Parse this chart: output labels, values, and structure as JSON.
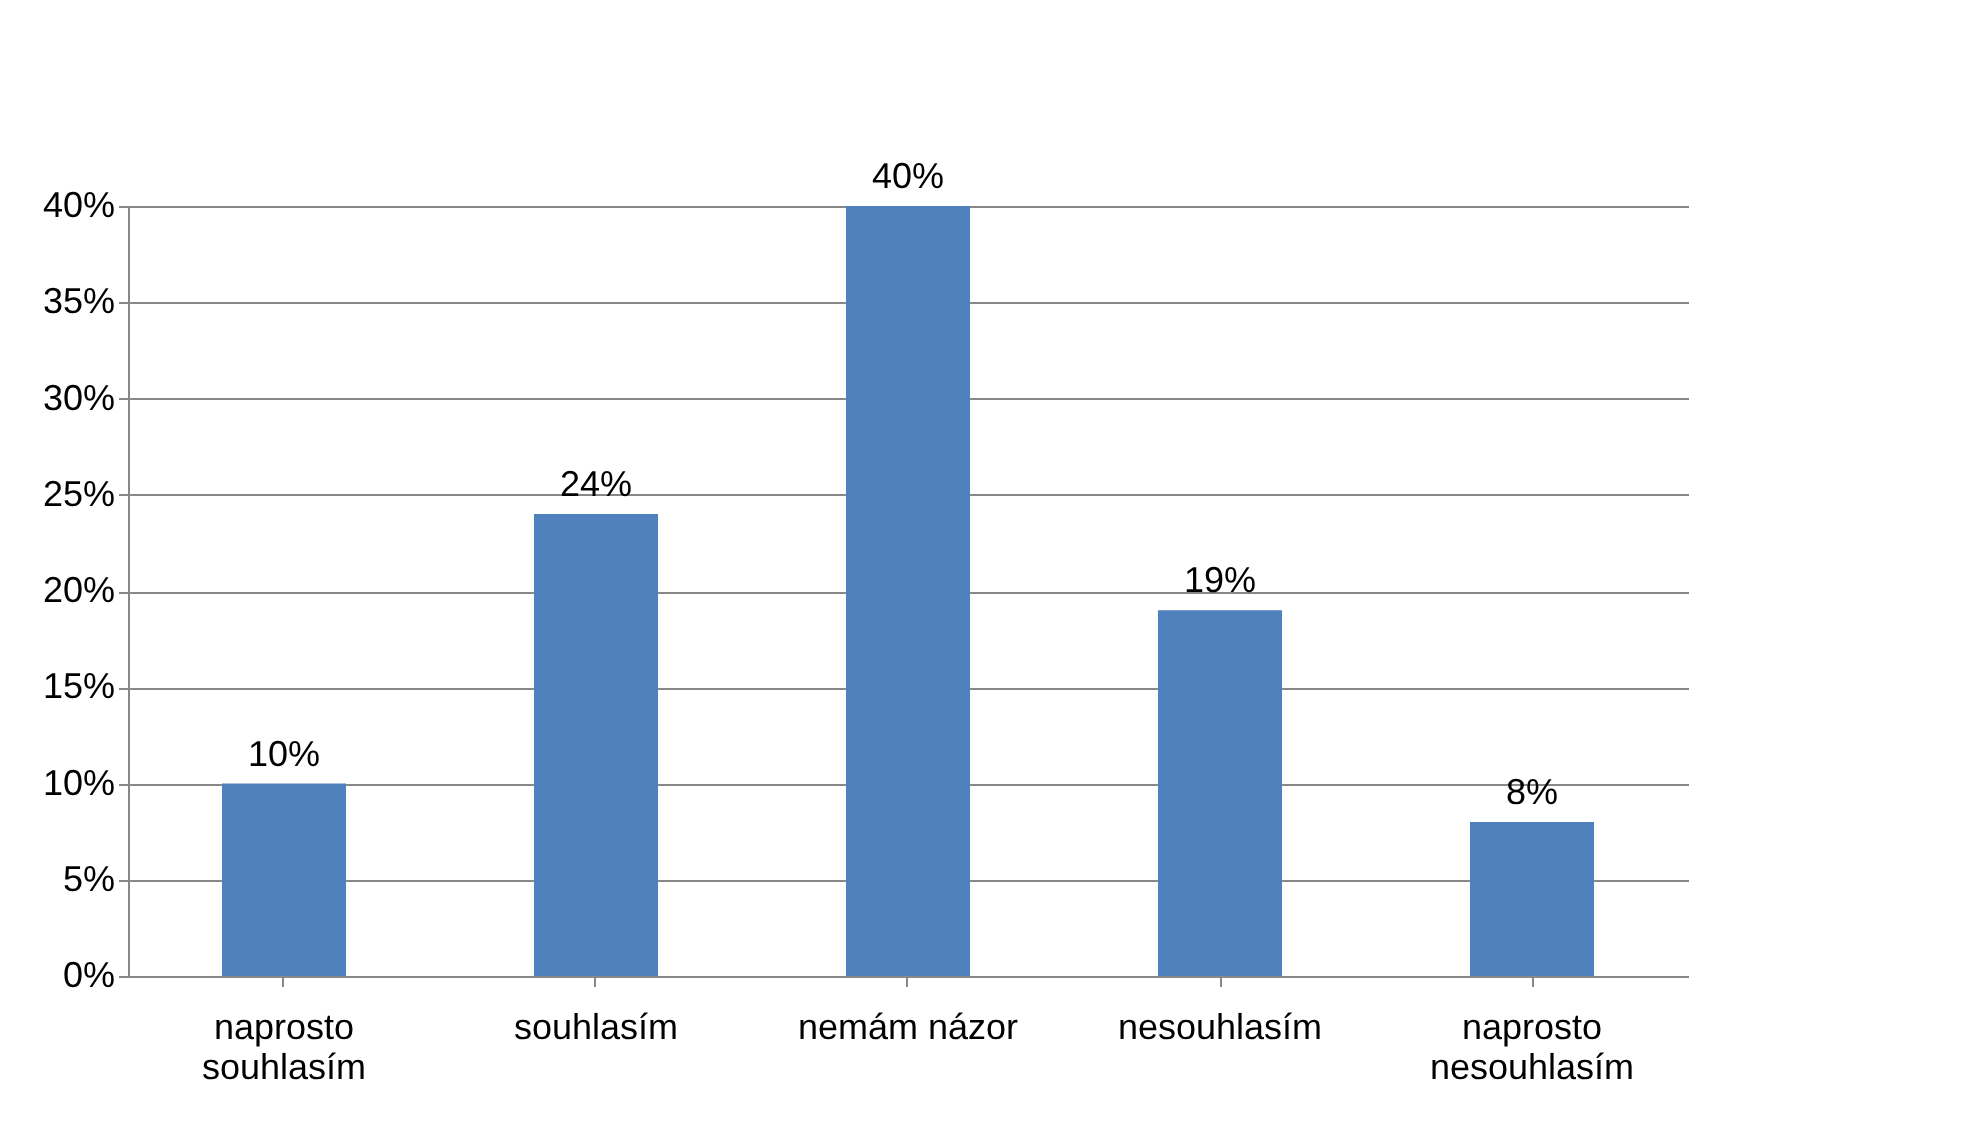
{
  "chart_data": {
    "type": "bar",
    "categories": [
      "naprosto souhlasím",
      "souhlasím",
      "nemám názor",
      "nesouhlasím",
      "naprosto nesouhlasím"
    ],
    "values": [
      10,
      24,
      40,
      19,
      8
    ],
    "value_labels": [
      "10%",
      "24%",
      "40%",
      "19%",
      "8%"
    ],
    "color": "#4f81bd",
    "ylim": [
      0,
      40
    ],
    "yticks": [
      {
        "value": 0,
        "label": "0%"
      },
      {
        "value": 5,
        "label": "5%"
      },
      {
        "value": 10,
        "label": "10%"
      },
      {
        "value": 15,
        "label": "15%"
      },
      {
        "value": 20,
        "label": "20%"
      },
      {
        "value": 25,
        "label": "25%"
      },
      {
        "value": 30,
        "label": "30%"
      },
      {
        "value": 35,
        "label": "35%"
      },
      {
        "value": 40,
        "label": "40%"
      }
    ],
    "grid": "y"
  }
}
